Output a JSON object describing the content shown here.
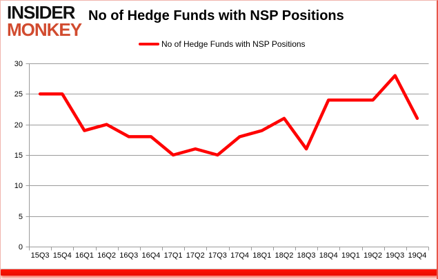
{
  "logo": {
    "line1": "INSIDER",
    "line2": "MONKEY"
  },
  "header": {
    "title": "No of Hedge Funds with NSP Positions"
  },
  "legend": {
    "label": "No of Hedge Funds with NSP Positions"
  },
  "colors": {
    "line": "#ff0000",
    "grid": "#9a9a9a",
    "axis": "#9a9a9a",
    "tick_label": "#000000",
    "logo_top": "#111111",
    "logo_bottom": "#d14b2f",
    "bottom_bar": "#f31405"
  },
  "chart_data": {
    "type": "line",
    "title": "No of Hedge Funds with NSP Positions",
    "categories": [
      "15Q3",
      "15Q4",
      "16Q1",
      "16Q2",
      "16Q3",
      "16Q4",
      "17Q1",
      "17Q2",
      "17Q3",
      "17Q4",
      "18Q1",
      "18Q2",
      "18Q3",
      "18Q4",
      "19Q1",
      "19Q2",
      "19Q3",
      "19Q4"
    ],
    "series": [
      {
        "name": "No of Hedge Funds with NSP Positions",
        "values": [
          25,
          25,
          19,
          20,
          18,
          18,
          15,
          16,
          15,
          18,
          19,
          21,
          16,
          24,
          24,
          24,
          28,
          21
        ]
      }
    ],
    "xlabel": "",
    "ylabel": "",
    "ylim": [
      0,
      30
    ],
    "yticks": [
      0,
      5,
      10,
      15,
      20,
      25,
      30
    ],
    "grid": "horizontal",
    "legend_position": "top"
  }
}
